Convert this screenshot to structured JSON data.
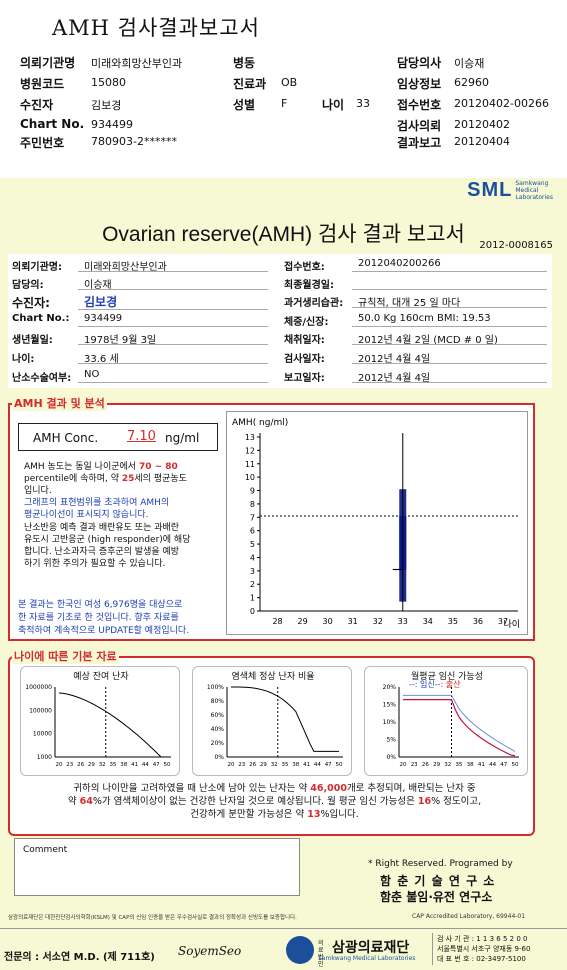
{
  "header": {
    "title": "AMH 검사결과보고서",
    "rows": [
      {
        "l1": "의뢰기관명",
        "v1": "미래와희망산부인과",
        "l2": "병동",
        "v2": "",
        "l3": "담당의사",
        "v3": "이승재"
      },
      {
        "l1": "병원코드",
        "v1": "15080",
        "l2": "진료과",
        "v2": "OB",
        "l3": "임상정보",
        "v3": "62960"
      },
      {
        "l1": "수진자",
        "v1": "김보경",
        "l2": "성별",
        "v2": "F",
        "l3": "접수번호",
        "v3": "20120402-00266"
      },
      {
        "l1": "Chart No.",
        "v1": "934499",
        "l2": "",
        "v2": "",
        "l3": "검사의뢰",
        "v3": "20120402"
      },
      {
        "l1": "주민번호",
        "v1": "780903-2******",
        "l2": "",
        "v2": "",
        "l3": "결과보고",
        "v3": "20120404"
      }
    ],
    "age_label": "나이",
    "age_value": "33"
  },
  "report": {
    "logo": "SML",
    "logo_sub1": "Samkwang",
    "logo_sub2": "Medical",
    "logo_sub3": "Laboratories",
    "title": "Ovarian reserve(AMH) 검사 결과 보고서",
    "number": "2012-0008165",
    "left_info": [
      {
        "label": "의뢰기관명:",
        "value": "미래와희망산부인과"
      },
      {
        "label": "담당의:",
        "value": "이승재"
      },
      {
        "label": "수진자:",
        "value": "김보경"
      },
      {
        "label": "Chart No.:",
        "value": "934499"
      },
      {
        "label": "생년월일:",
        "value": "1978년 9월 3일"
      },
      {
        "label": "나이:",
        "value": "33.6 세"
      },
      {
        "label": "난소수술여부:",
        "value": "NO"
      }
    ],
    "right_info": [
      {
        "label": "접수번호:",
        "value": "2012040200266"
      },
      {
        "label": "최종월경일:",
        "value": ""
      },
      {
        "label": "과거생리습관:",
        "value": "규칙적, 대개   25 일 마다"
      },
      {
        "label": "체중/신장:",
        "value": "50.0 Kg    160cm     BMI:  19.53"
      },
      {
        "label": "채취일자:",
        "value": "2012년 4월 2일    (MCD # 0 일)"
      },
      {
        "label": "검사일자:",
        "value": "2012년 4월 4일"
      },
      {
        "label": "보고일자:",
        "value": "2012년 4월 4일"
      }
    ]
  },
  "amh": {
    "section_title": "AMH 결과 및 분석",
    "conc_label": "AMH Conc.",
    "conc_value": "7.10",
    "conc_unit": "ng/ml",
    "p1a": "AMH 농도는 동일 나이군에서",
    "p1b": "70 ~ 80",
    "p1c": "percentile에 속하며, 약",
    "p1d": "25",
    "p1e": "세의 평균농도",
    "p1f": "입니다.",
    "p2a": "그래프의 표현범위를 초과하여 AMH의",
    "p2b": "평균나이선이 표시되지 않습니다.",
    "p3a": "난소반응 예측 결과 배란유도 또는 과배란",
    "p3b": "유도시 고반응군 (high responder)에 해당",
    "p3c": "합니다. 난소과자극 증후군의 발생을 예방",
    "p3d": "하기 위한 주의가 필요할 수 있습니다.",
    "p4a": "본 결과는 한국인 여성 6,976명을 대상으로",
    "p4b": "한 자료를 기초로 한 것입니다. 향후 자료를",
    "p4c": "축적하여 계속적으로 UPDATE할 예정입니다."
  },
  "chart_data": {
    "type": "bar",
    "title": "",
    "ylabel": "AMH( ng/ml)",
    "xlabel": "나이",
    "x_ticks": [
      28,
      29,
      30,
      31,
      32,
      33,
      34,
      35,
      36,
      37
    ],
    "y_ticks": [
      0,
      1,
      2,
      3,
      4,
      5,
      6,
      7,
      8,
      9,
      10,
      11,
      12,
      13
    ],
    "ylim": [
      0,
      13
    ],
    "xlim": [
      27.3,
      37.6
    ],
    "patient_value": 7.1,
    "patient_age": 33,
    "range_bar": {
      "x": 33,
      "low": 0.7,
      "high": 9.1
    },
    "inner_bar": {
      "x": 33,
      "low": 3.1,
      "high": 7.1
    },
    "reference_line": 7.1,
    "grid": false
  },
  "age_section": {
    "title": "나이에 따른 기본 자료",
    "chart1_title": "예상 잔여 난자",
    "chart1_yticks": [
      "1000000",
      "100000",
      "10000",
      "1000"
    ],
    "chart2_title": "염색체 정상 난자 비율",
    "chart2_yticks": [
      "100%",
      "80%",
      "60%",
      "40%",
      "20%",
      "0%"
    ],
    "chart3_title": "월평균 임신 가능성",
    "chart3_legend1": "--: 임신--",
    "chart3_legend2": ": 출산",
    "chart3_yticks": [
      "20%",
      "15%",
      "10%",
      "5%",
      "0%"
    ],
    "xticks": [
      "20",
      "23",
      "26",
      "29",
      "32",
      "35",
      "38",
      "41",
      "44",
      "47",
      "50"
    ],
    "text1a": "귀하의 나이만을 고려하였을 때 난소에 남아 있는 난자는 약",
    "text1b": "46,000",
    "text1c": "개로 추정되며, 배란되는 난자 중",
    "text2a": "약",
    "text2b": "64",
    "text2c": "%가 염색체이상이 없는 건강한 난자일 것으로 예상됩니다. 월 평균 임신 가능성은",
    "text2d": "16",
    "text2e": "% 정도이고,",
    "text3a": "건강하게 분만할 가능성은 약",
    "text3b": "13",
    "text3c": "%입니다."
  },
  "footer": {
    "comment_label": "Comment",
    "rights": "* Right Reserved. Programed by",
    "lab1": "함 춘 기 술 연 구 소",
    "lab2": "함춘 불임·유전 연구소",
    "note": "삼광의료재단은 대한진단검사의학회(KSLM) 및 CAP의 신임 인증을 받은 우수검사실로 결과의 정확성과 신빙도를 보증합니다.",
    "cap": "CAP  Accredited  Laboratory,  69944-01",
    "doctor": "전문의 : 서소연 M.D. (제 711호)",
    "signature": "SoyemSeo",
    "foundation_prefix": "의료법인",
    "foundation": "삼광의료재단",
    "foundation_en": "Samkwang Medical Laboratories",
    "addr1": "검 사 기 관 : 1 1 3 6 5 2 0 0",
    "addr2": "서울특별시 서초구 양재동 9-60",
    "addr3": "대 표 번 호 : 02-3497-5100"
  }
}
